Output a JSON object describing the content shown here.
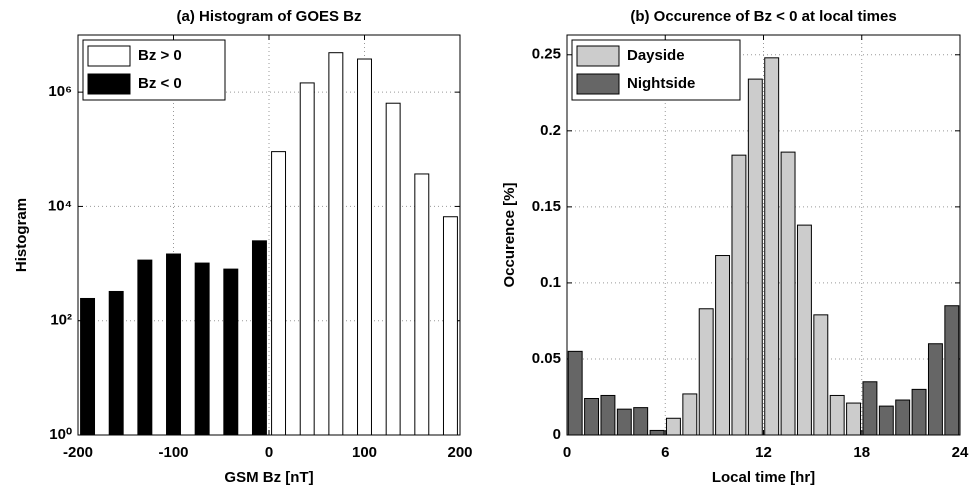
{
  "chart_data": [
    {
      "type": "bar",
      "title": "(a) Histogram of GOES Bz",
      "x_label": "GSM Bz [nT]",
      "y_label": "Histogram",
      "log_y": true,
      "grid": true,
      "legend": "upper left",
      "x": [
        -190,
        -160,
        -130,
        -100,
        -70,
        -40,
        -10,
        10,
        40,
        70,
        100,
        130,
        160,
        190
      ],
      "series": [
        {
          "name": "Bz > 0",
          "color": "#ffffff",
          "values": [
            null,
            null,
            null,
            null,
            null,
            null,
            null,
            91000,
            1450000,
            4900000,
            3800000,
            640000,
            37000,
            6600
          ]
        },
        {
          "name": "Bz < 0",
          "color": "#000000",
          "values": [
            245,
            325,
            1150,
            1470,
            1020,
            800,
            2500,
            null,
            null,
            null,
            null,
            null,
            null,
            null
          ]
        }
      ],
      "xlim": [
        -200,
        200
      ],
      "xticks": [
        -200,
        -100,
        0,
        100,
        200
      ],
      "ylim": [
        1,
        10000000
      ],
      "yticks": [
        {
          "value": 1,
          "label": "10⁰"
        },
        {
          "value": 100,
          "label": "10²"
        },
        {
          "value": 10000,
          "label": "10⁴"
        },
        {
          "value": 1000000,
          "label": "10⁶"
        }
      ]
    },
    {
      "type": "bar",
      "title": "(b) Occurence of Bz < 0 at local times",
      "x_label": "Local time [hr]",
      "y_label": "Occurence [%]",
      "log_y": false,
      "grid": true,
      "legend": "upper left",
      "x": [
        0.5,
        1.5,
        2.5,
        3.5,
        4.5,
        5.5,
        6.5,
        7.5,
        8.5,
        9.5,
        10.5,
        11.5,
        12.5,
        13.5,
        14.5,
        15.5,
        16.5,
        17.5,
        18.5,
        19.5,
        20.5,
        21.5,
        22.5,
        23.5
      ],
      "series": [
        {
          "name": "Dayside",
          "color": "#cccccc",
          "values": [
            null,
            null,
            null,
            null,
            null,
            null,
            0.011,
            0.027,
            0.083,
            0.118,
            0.184,
            0.234,
            0.248,
            0.186,
            0.138,
            0.079,
            0.026,
            0.021,
            null,
            null,
            null,
            null,
            null,
            null
          ]
        },
        {
          "name": "Nightside",
          "color": "#666666",
          "values": [
            0.055,
            0.024,
            0.026,
            0.017,
            0.018,
            0.003,
            null,
            null,
            null,
            null,
            null,
            null,
            null,
            null,
            null,
            null,
            null,
            null,
            0.035,
            0.019,
            0.023,
            0.03,
            0.06,
            0.085
          ]
        }
      ],
      "xlim": [
        0,
        24
      ],
      "xticks": [
        0,
        6,
        12,
        18,
        24
      ],
      "ylim": [
        0,
        0.263
      ],
      "yticks": [
        0,
        0.05,
        0.1,
        0.15,
        0.2,
        0.25
      ]
    }
  ]
}
